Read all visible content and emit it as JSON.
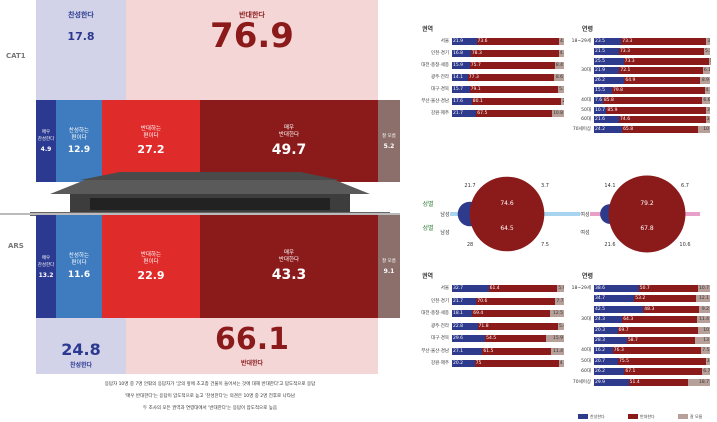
{
  "left": {
    "cat1_label": "CAT1",
    "ars_label": "ARS",
    "top_support": {
      "label": "찬성한다",
      "value": "17.8"
    },
    "top_oppose": {
      "label": "반대한다",
      "value": "76.9"
    },
    "cat1_row": [
      {
        "label": "매우\n찬성한다",
        "value": "4.9"
      },
      {
        "label": "찬성하는\n편이다",
        "value": "12.9"
      },
      {
        "label": "반대하는\n편이다",
        "value": "27.2"
      },
      {
        "label": "매우\n반대한다",
        "value": "49.7"
      },
      {
        "label": "잘 모름",
        "value": "5.2"
      }
    ],
    "ars_row": [
      {
        "label": "매우\n찬성한다",
        "value": "13.2"
      },
      {
        "label": "찬성하는\n편이다",
        "value": "11.6"
      },
      {
        "label": "반대하는\n편이다",
        "value": "22.9"
      },
      {
        "label": "매우\n반대한다",
        "value": "43.3"
      },
      {
        "label": "잘 모름",
        "value": "9.1"
      }
    ],
    "bottom_support": {
      "label": "찬성한다",
      "value": "24.8"
    },
    "bottom_oppose": {
      "label": "반대한다",
      "value": "66.1"
    },
    "footnote": [
      "응답자 10명 중 7명 안팎의 응답자가 '궁의 앞에 초고층 건물이 들어서는 것에 대해 반대한다'고 답도적으로 응답",
      "'매우 반대한다'는 응답이 압도적으로 높고 '찬성한다'는 의견은 10명 중 2명 전후로 나타남",
      "두 조사의 모든 권역과 연령대에서 '반대한다'는 응답이 압도적으로 높음"
    ]
  },
  "colors": {
    "very_support": "#2b3990",
    "support": "#3e7bbf",
    "oppose": "#e02b2b",
    "very_oppose": "#8b1a1a",
    "unknown": "#8c6f6a",
    "support_bg": "#c9cbe5",
    "oppose_bg": "#f2cfcf",
    "bar_support": "#2e3a8c",
    "bar_oppose": "#8b1a1a",
    "bar_unknown": "#b8a09a"
  },
  "chart_data": [
    {
      "type": "bar",
      "title": "권역",
      "survey": "CAT1",
      "categories": [
        "서울",
        "인천·경기",
        "대전·충청·세종",
        "광주·전라",
        "대구·경북",
        "부산·울산·경남",
        "강원·제주"
      ],
      "series": [
        {
          "values": [
            21.9,
            16.8,
            15.9,
            14.1,
            15.7,
            17.6,
            21.7
          ]
        },
        {
          "values": [
            73.6,
            78.3,
            75.7,
            77.3,
            79.1,
            80.1,
            67.5
          ]
        },
        {
          "values": [
            4.5,
            4.9,
            8.4,
            8.6,
            5.2,
            2.3,
            10.8
          ]
        }
      ]
    },
    {
      "type": "bar",
      "title": "연령",
      "survey": "CAT1",
      "categories": [
        "18~29세",
        "",
        "",
        "30대",
        "",
        "",
        "40대",
        "50대",
        "60대",
        "70세이상"
      ],
      "series": [
        {
          "values": [
            23.5,
            21.5,
            25.5,
            21.9,
            26.2,
            15.5,
            7.6,
            10.7,
            21.6,
            24.2
          ]
        },
        {
          "values": [
            73.3,
            73.3,
            73.3,
            72.1,
            64.9,
            79.8,
            85.8,
            85.9,
            74.6,
            65.8
          ]
        },
        {
          "values": [
            3.2,
            5.2,
            1.2,
            6.1,
            8.9,
            4.7,
            6.6,
            3.4,
            3.8,
            10.0
          ]
        }
      ]
    },
    {
      "type": "pie",
      "title": "성별",
      "survey": "CAT1",
      "categories": [
        "남성",
        "여성"
      ],
      "series": [
        {
          "values": [
            21.7,
            14.1
          ]
        },
        {
          "values": [
            74.6,
            79.2
          ]
        },
        {
          "values": [
            3.7,
            6.7
          ]
        }
      ]
    },
    {
      "type": "pie",
      "title": "성별",
      "survey": "ARS",
      "categories": [
        "남성",
        "여성"
      ],
      "series": [
        {
          "values": [
            28.0,
            21.6
          ]
        },
        {
          "values": [
            64.5,
            67.8
          ]
        },
        {
          "values": [
            7.5,
            10.6
          ]
        }
      ]
    },
    {
      "type": "bar",
      "title": "권역",
      "survey": "ARS",
      "categories": [
        "서울",
        "인천·경기",
        "대전·충청·세종",
        "광주·전라",
        "대구·경북",
        "부산·울산·경남",
        "강원·제주"
      ],
      "series": [
        {
          "values": [
            32.7,
            21.7,
            18.1,
            22.8,
            29.6,
            27.1,
            20.2
          ]
        },
        {
          "values": [
            61.4,
            70.6,
            69.4,
            71.8,
            54.5,
            61.5,
            75.0
          ]
        },
        {
          "values": [
            5.9,
            7.7,
            12.5,
            5.4,
            15.9,
            11.4,
            4.8
          ]
        }
      ]
    },
    {
      "type": "bar",
      "title": "연령",
      "survey": "ARS",
      "categories": [
        "18~29세",
        "",
        "",
        "30대",
        "",
        "",
        "40대",
        "50대",
        "60대",
        "70세이상"
      ],
      "series": [
        {
          "values": [
            38.6,
            34.7,
            42.5,
            24.3,
            20.3,
            28.3,
            16.2,
            20.7,
            26.2,
            29.9
          ]
        },
        {
          "values": [
            50.7,
            53.2,
            48.3,
            64.3,
            69.7,
            58.7,
            76.3,
            75.5,
            67.1,
            51.4
          ]
        },
        {
          "values": [
            10.7,
            12.1,
            9.2,
            11.4,
            10.0,
            13.0,
            7.5,
            3.8,
            6.7,
            18.7
          ]
        }
      ]
    }
  ],
  "legend": [
    "찬성한다",
    "반대한다",
    "잘 모름"
  ]
}
